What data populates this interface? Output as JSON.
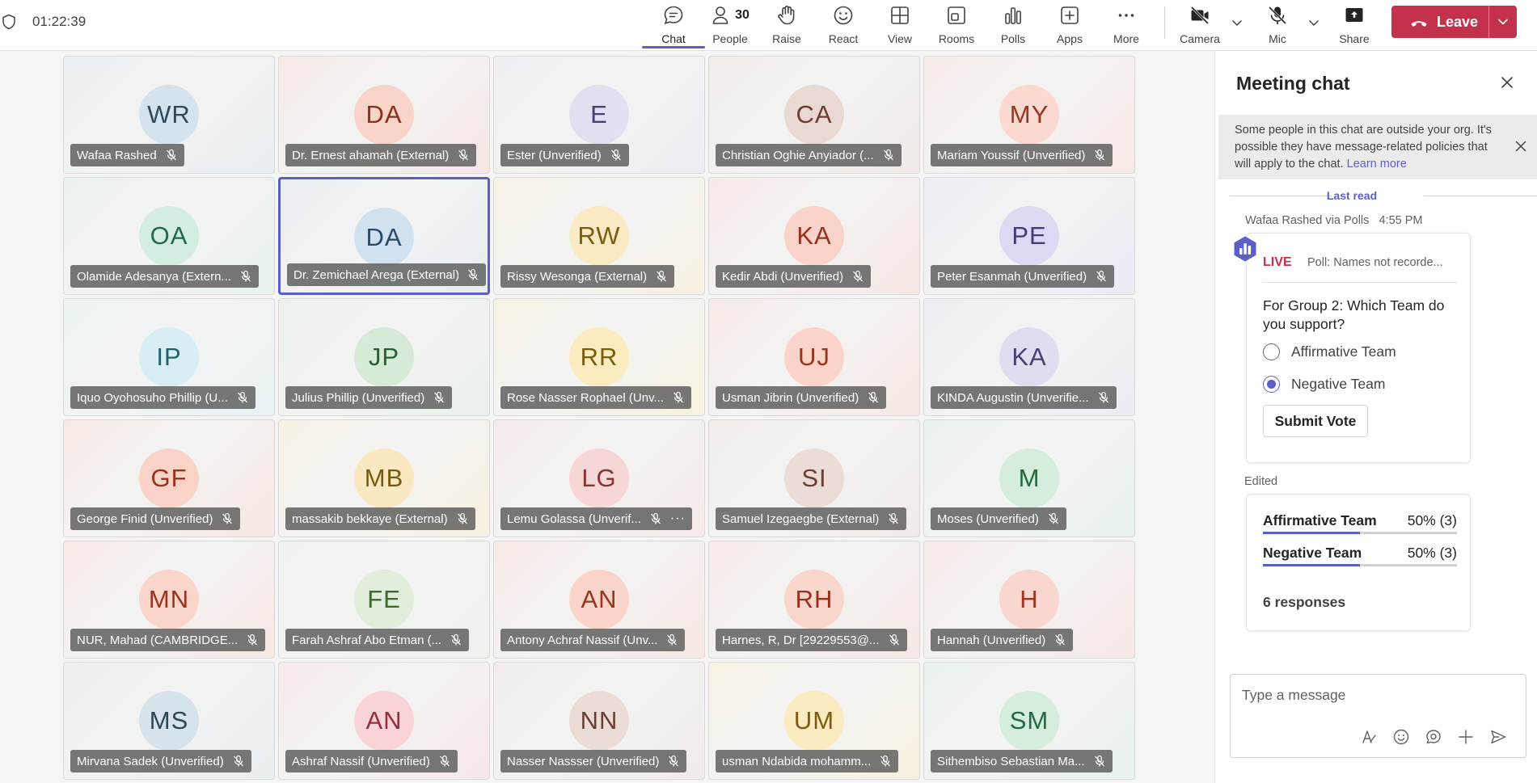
{
  "meeting": {
    "duration": "01:22:39"
  },
  "toolbar": {
    "chat": "Chat",
    "people": "People",
    "people_count": "30",
    "raise": "Raise",
    "react": "React",
    "view": "View",
    "rooms": "Rooms",
    "polls": "Polls",
    "apps": "Apps",
    "more": "More",
    "camera": "Camera",
    "mic": "Mic",
    "share": "Share",
    "leave": "Leave"
  },
  "participants": [
    {
      "initials": "WR",
      "name": "Wafaa Rashed",
      "bg": "#d4e3ed",
      "fg": "#2f4a5c"
    },
    {
      "initials": "DA",
      "name": "Dr. Ernest ahamah (External)",
      "bg": "#f7d3c8",
      "fg": "#8c2f1a"
    },
    {
      "initials": "E",
      "name": "Ester (Unverified)",
      "bg": "#e4dff0",
      "fg": "#4a3d73"
    },
    {
      "initials": "CA",
      "name": "Christian Oghie Anyiador (...",
      "bg": "#ead9d2",
      "fg": "#6b3e30"
    },
    {
      "initials": "MY",
      "name": "Mariam Youssif (Unverified)",
      "bg": "#fbd8d0",
      "fg": "#9a3520"
    },
    {
      "initials": "OA",
      "name": "Olamide Adesanya (Extern...",
      "bg": "#d3ede0",
      "fg": "#1f6b45"
    },
    {
      "initials": "DA",
      "name": "Dr. Zemichael Arega (External)",
      "bg": "#d2e1ef",
      "fg": "#284b6b",
      "selected": true
    },
    {
      "initials": "RW",
      "name": "Rissy Wesonga (External)",
      "bg": "#faeac4",
      "fg": "#7a5b10"
    },
    {
      "initials": "KA",
      "name": "Kedir Abdi (Unverified)",
      "bg": "#f9d2ca",
      "fg": "#9a2f1d"
    },
    {
      "initials": "PE",
      "name": "Peter Esanmah (Unverified)",
      "bg": "#ddd9f2",
      "fg": "#443c7a"
    },
    {
      "initials": "IP",
      "name": "Iquo Oyohosuho Phillip (U...",
      "bg": "#d6eef4",
      "fg": "#23606e"
    },
    {
      "initials": "JP",
      "name": "Julius Phillip (Unverified)",
      "bg": "#d6ead7",
      "fg": "#2a5e33"
    },
    {
      "initials": "RR",
      "name": "Rose Nasser Rophael (Unv...",
      "bg": "#faecbf",
      "fg": "#7c5c0e"
    },
    {
      "initials": "UJ",
      "name": "Usman Jibrin (Unverified)",
      "bg": "#fad4c8",
      "fg": "#9a3320"
    },
    {
      "initials": "KA",
      "name": "KINDA Augustin (Unverifie...",
      "bg": "#e0ddf0",
      "fg": "#46406f"
    },
    {
      "initials": "GF",
      "name": "George Finid (Unverified)",
      "bg": "#f9d3c6",
      "fg": "#9a321d"
    },
    {
      "initials": "MB",
      "name": "massakib bekkaye (External)",
      "bg": "#f9e8c0",
      "fg": "#7a5a10"
    },
    {
      "initials": "LG",
      "name": "Lemu Golassa (Unverif...",
      "bg": "#f7d6d6",
      "fg": "#8c3232",
      "more": true
    },
    {
      "initials": "SI",
      "name": "Samuel Izegaegbe (External)",
      "bg": "#ebdcd5",
      "fg": "#6b4032"
    },
    {
      "initials": "M",
      "name": "Moses (Unverified)",
      "bg": "#d4eddd",
      "fg": "#226a3e"
    },
    {
      "initials": "MN",
      "name": "NUR, Mahad (CAMBRIDGE...",
      "bg": "#fad5c9",
      "fg": "#9a3320"
    },
    {
      "initials": "FE",
      "name": "Farah Ashraf Abo Etman (...",
      "bg": "#e0eedb",
      "fg": "#3e6a2d"
    },
    {
      "initials": "AN",
      "name": "Antony Achraf Nassif (Unv...",
      "bg": "#fad4c8",
      "fg": "#9a3320"
    },
    {
      "initials": "RH",
      "name": "Harnes, R, Dr [29229553@...",
      "bg": "#f8d6cc",
      "fg": "#9a2f1d"
    },
    {
      "initials": "H",
      "name": "Hannah (Unverified)",
      "bg": "#f9d6cf",
      "fg": "#9a3520"
    },
    {
      "initials": "MS",
      "name": "Mirvana Sadek (Unverified)",
      "bg": "#d6e3ea",
      "fg": "#2c4653"
    },
    {
      "initials": "AN",
      "name": "Ashraf Nassif (Unverified)",
      "bg": "#f9d3d6",
      "fg": "#94303d"
    },
    {
      "initials": "NN",
      "name": "Nasser Nassser (Unverified)",
      "bg": "#ebdcd5",
      "fg": "#6b4032"
    },
    {
      "initials": "UM",
      "name": "usman Ndabida mohamm...",
      "bg": "#faeac0",
      "fg": "#7c5c0e"
    },
    {
      "initials": "SM",
      "name": "Sithembiso Sebastian Ma...",
      "bg": "#d4eddd",
      "fg": "#226a3e"
    }
  ],
  "chat": {
    "title": "Meeting chat",
    "notice": "Some people in this chat are outside your org. It's possible they have message-related policies that will apply to the chat.",
    "notice_link": "Learn more",
    "last_read": "Last read",
    "sender": "Wafaa Rashed via Polls",
    "time": "4:55 PM",
    "poll": {
      "status": "LIVE",
      "subtitle": "Poll: Names not recorde...",
      "question": "For Group 2: Which Team do you support?",
      "options": [
        "Affirmative Team",
        "Negative Team"
      ],
      "selected_option": "Negative Team",
      "submit": "Submit Vote"
    },
    "edited": "Edited",
    "results": [
      {
        "name": "Affirmative Team",
        "value": "50% (3)",
        "fraction": 0.5
      },
      {
        "name": "Negative Team",
        "value": "50% (3)",
        "fraction": 0.5
      }
    ],
    "responses": "6 responses",
    "compose_placeholder": "Type a message"
  },
  "colors": {
    "accent": "#5b5fc7",
    "leave": "#c4314b",
    "live": "#c4314b"
  }
}
